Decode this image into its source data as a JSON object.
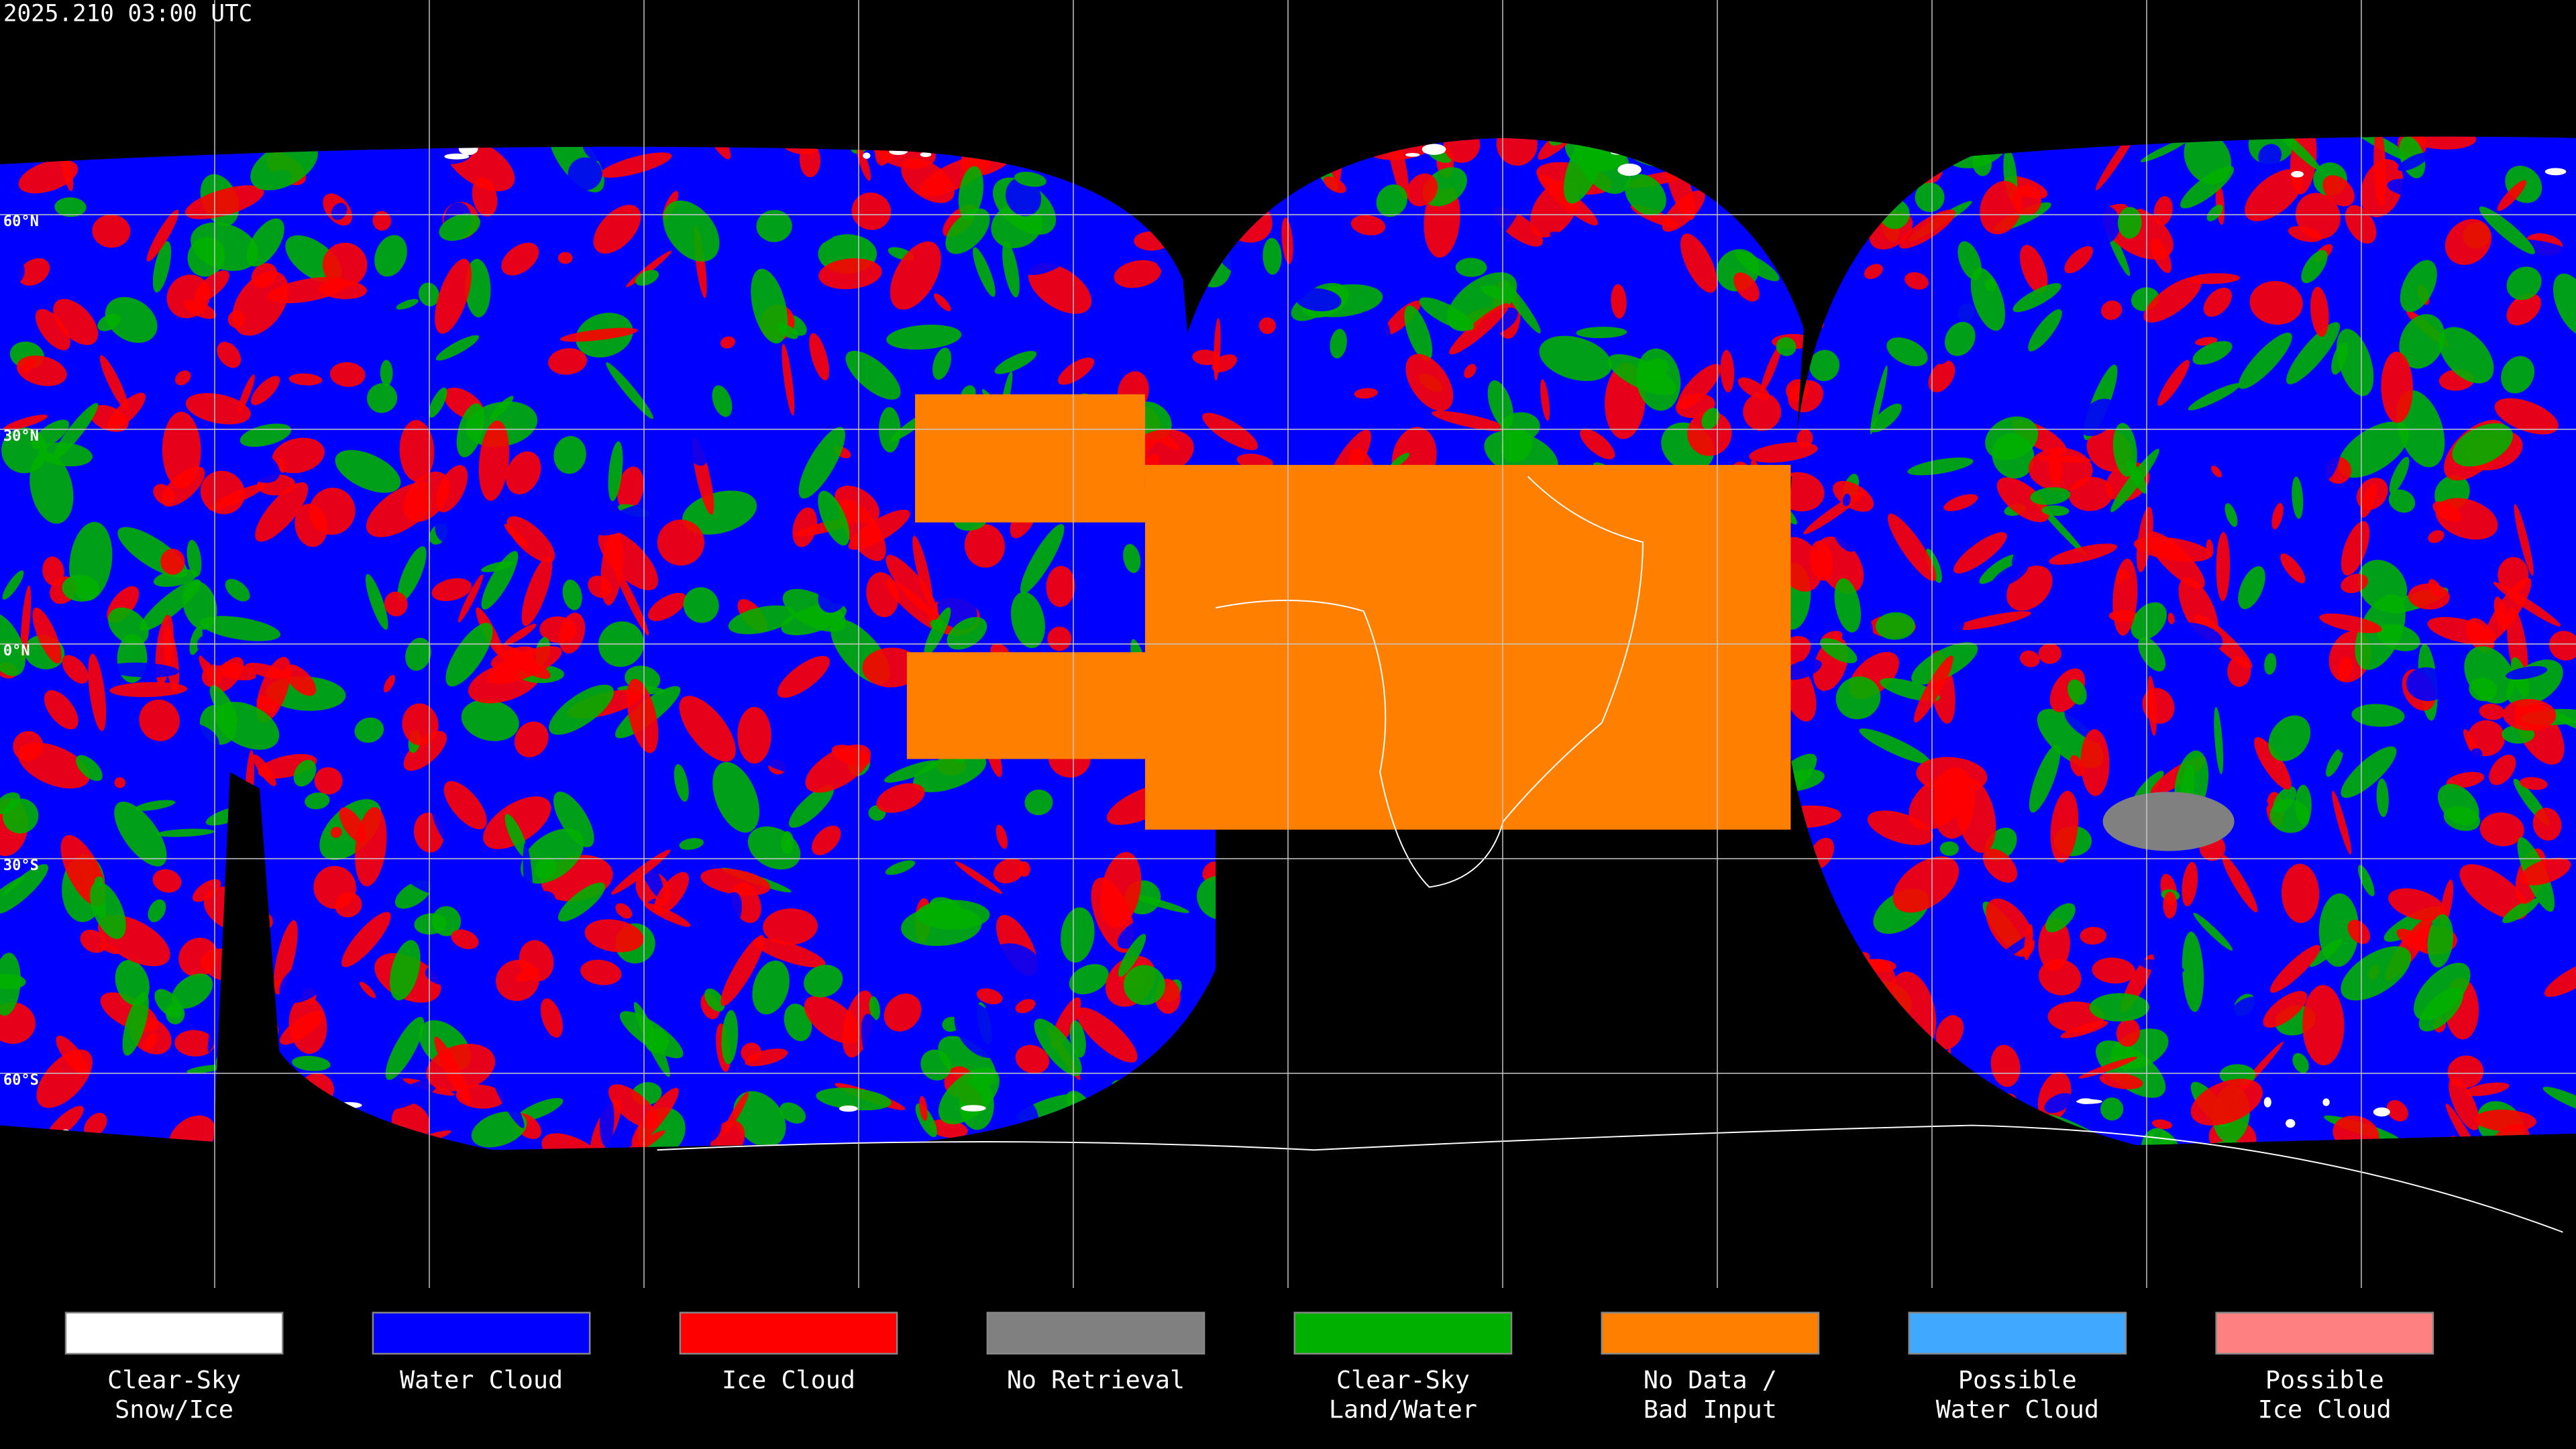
{
  "header": {
    "timestamp": "2025.210 03:00 UTC"
  },
  "latitude_labels": [
    "60°N",
    "30°N",
    "0°N",
    "30°S",
    "60°S"
  ],
  "legend": [
    {
      "label": [
        "Clear-Sky",
        "Snow/Ice"
      ],
      "color": "#ffffff"
    },
    {
      "label": [
        "Water Cloud"
      ],
      "color": "#0000ff"
    },
    {
      "label": [
        "Ice Cloud"
      ],
      "color": "#ff0000"
    },
    {
      "label": [
        "No Retrieval"
      ],
      "color": "#808080"
    },
    {
      "label": [
        "Clear-Sky",
        "Land/Water"
      ],
      "color": "#00b000"
    },
    {
      "label": [
        "No Data /",
        "Bad Input"
      ],
      "color": "#ff8000"
    },
    {
      "label": [
        "Possible",
        "Water Cloud"
      ],
      "color": "#40a8ff"
    },
    {
      "label": [
        "Possible",
        "Ice Cloud"
      ],
      "color": "#ff8080"
    }
  ]
}
